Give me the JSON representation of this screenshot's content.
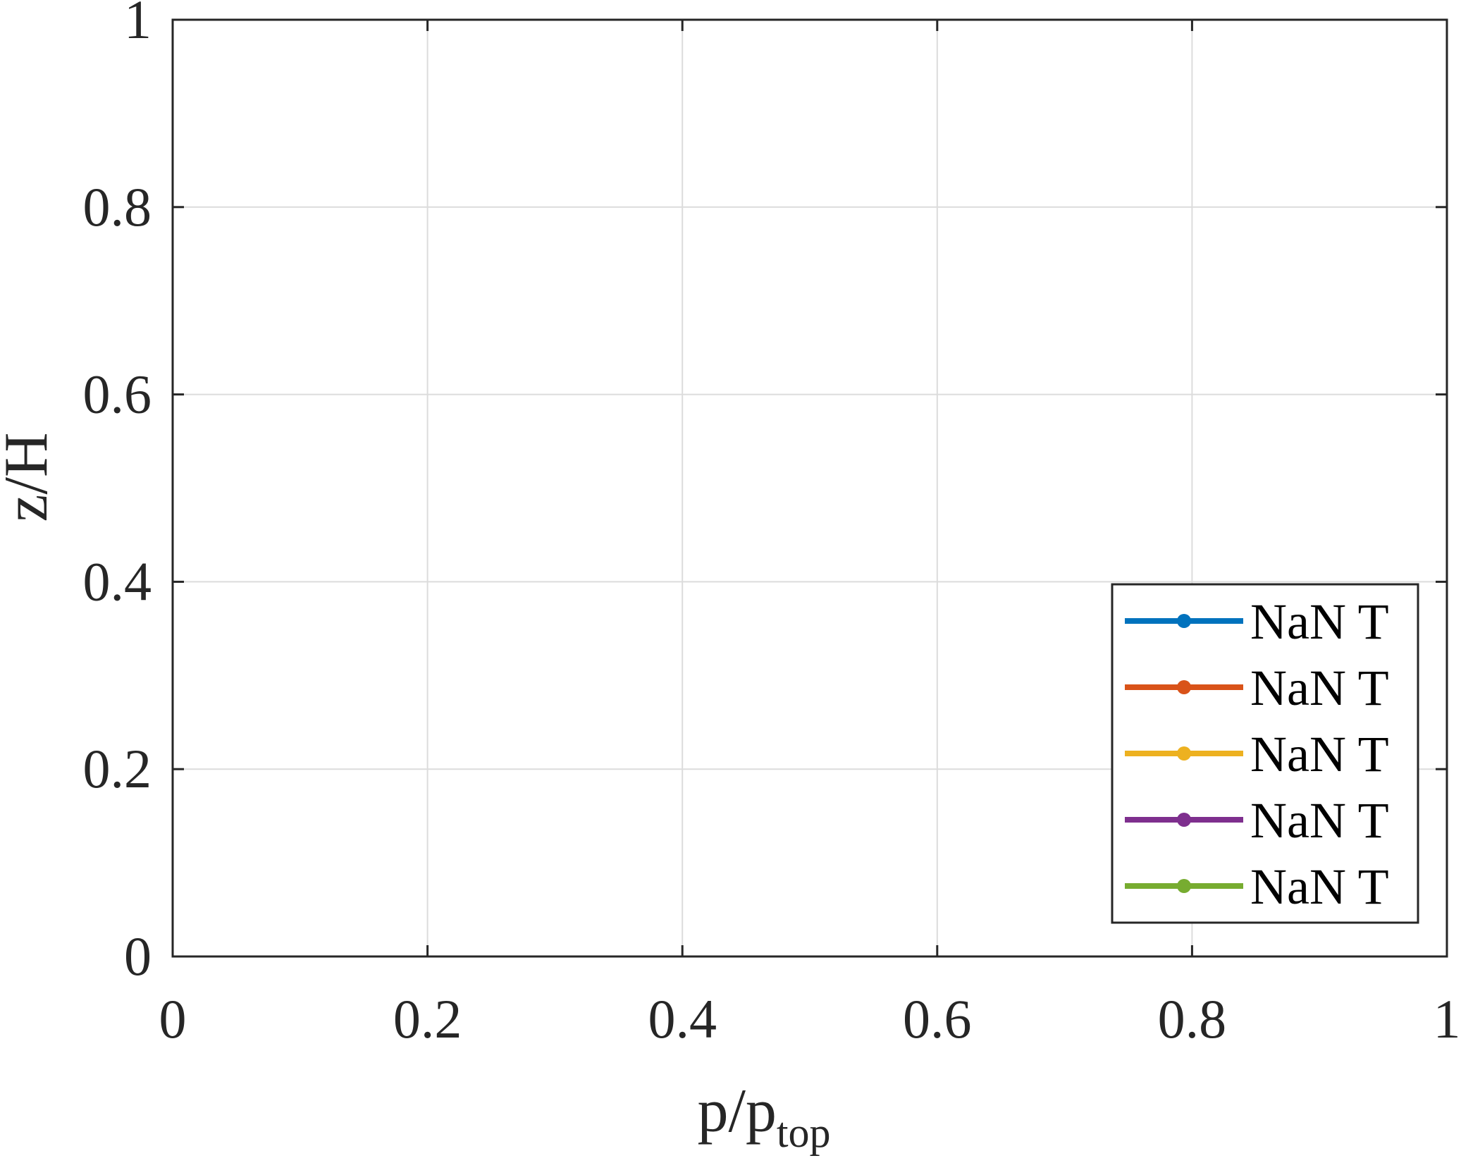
{
  "chart_data": {
    "type": "line",
    "xlabel": "p/p",
    "xlabel_subscript": "top",
    "ylabel": "z/H",
    "xlim": [
      0,
      1
    ],
    "ylim": [
      0,
      1
    ],
    "x_ticks": [
      "0",
      "0.2",
      "0.4",
      "0.6",
      "0.8",
      "1"
    ],
    "y_ticks": [
      "0",
      "0.2",
      "0.4",
      "0.6",
      "0.8",
      "1"
    ],
    "grid": true,
    "legend_position": "bottom-right",
    "series": [
      {
        "name": "NaN T",
        "color": "#0072bd",
        "marker": "dot",
        "x": [],
        "y": []
      },
      {
        "name": "NaN T",
        "color": "#d95319",
        "marker": "dot",
        "x": [],
        "y": []
      },
      {
        "name": "NaN T",
        "color": "#edb120",
        "marker": "dot",
        "x": [],
        "y": []
      },
      {
        "name": "NaN T",
        "color": "#7e2f8e",
        "marker": "dot",
        "x": [],
        "y": []
      },
      {
        "name": "NaN T",
        "color": "#77ac30",
        "marker": "dot",
        "x": [],
        "y": []
      }
    ]
  }
}
